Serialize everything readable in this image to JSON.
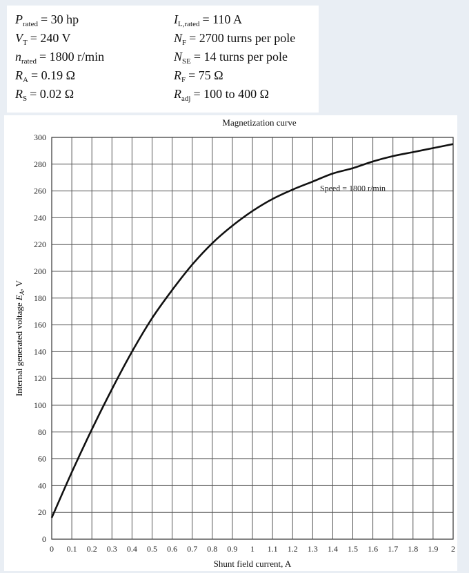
{
  "parameters": {
    "left": [
      {
        "symbol": "P",
        "sub": "rated",
        "value": "= 30 hp"
      },
      {
        "symbol": "V",
        "sub": "T",
        "value": "= 240 V"
      },
      {
        "symbol": "n",
        "sub": "rated",
        "value": "= 1800 r/min"
      },
      {
        "symbol": "R",
        "sub": "A",
        "value": "= 0.19 Ω"
      },
      {
        "symbol": "R",
        "sub": "S",
        "value": "= 0.02 Ω"
      }
    ],
    "right": [
      {
        "symbol": "I",
        "sub": "L,rated",
        "value": "= 110 A"
      },
      {
        "symbol": "N",
        "sub": "F",
        "value": "= 2700 turns per pole"
      },
      {
        "symbol": "N",
        "sub": "SE",
        "value": "= 14 turns per pole"
      },
      {
        "symbol": "R",
        "sub": "F",
        "value": "= 75 Ω"
      },
      {
        "symbol": "R",
        "sub": "adj",
        "value": "= 100 to 400 Ω"
      }
    ]
  },
  "chart_data": {
    "type": "line",
    "title": "Magnetization curve",
    "xlabel": "Shunt field current, A",
    "ylabel": "Internal generated voltage E_A, V",
    "ylabel_parts": {
      "main": "Internal generated voltage ",
      "sym": "E",
      "sub": "A",
      "rest": ", V"
    },
    "xlim": [
      0,
      2
    ],
    "ylim": [
      0,
      300
    ],
    "x_ticks": [
      "0",
      "0.1",
      "0.2",
      "0.3",
      "0.4",
      "0.5",
      "0.6",
      "0.7",
      "0.8",
      "0.9",
      "1",
      "1.1",
      "1.2",
      "1.3",
      "1.4",
      "1.5",
      "1.6",
      "1.7",
      "1.8",
      "1.9",
      "2"
    ],
    "y_ticks": [
      "0",
      "20",
      "40",
      "60",
      "80",
      "100",
      "120",
      "140",
      "160",
      "180",
      "200",
      "220",
      "240",
      "260",
      "280",
      "300"
    ],
    "grid": true,
    "annotation": "Speed = 1800 r/min",
    "series": [
      {
        "x": [
          0,
          0.1,
          0.2,
          0.3,
          0.4,
          0.5,
          0.6,
          0.7,
          0.8,
          0.9,
          1.0,
          1.1,
          1.2,
          1.3,
          1.4,
          1.5,
          1.6,
          1.7,
          1.8,
          1.9,
          2.0
        ],
        "y": [
          16,
          50,
          82,
          112,
          140,
          165,
          186,
          205,
          221,
          234,
          245,
          254,
          261,
          267,
          273,
          277,
          282,
          286,
          289,
          292,
          295
        ]
      }
    ]
  }
}
